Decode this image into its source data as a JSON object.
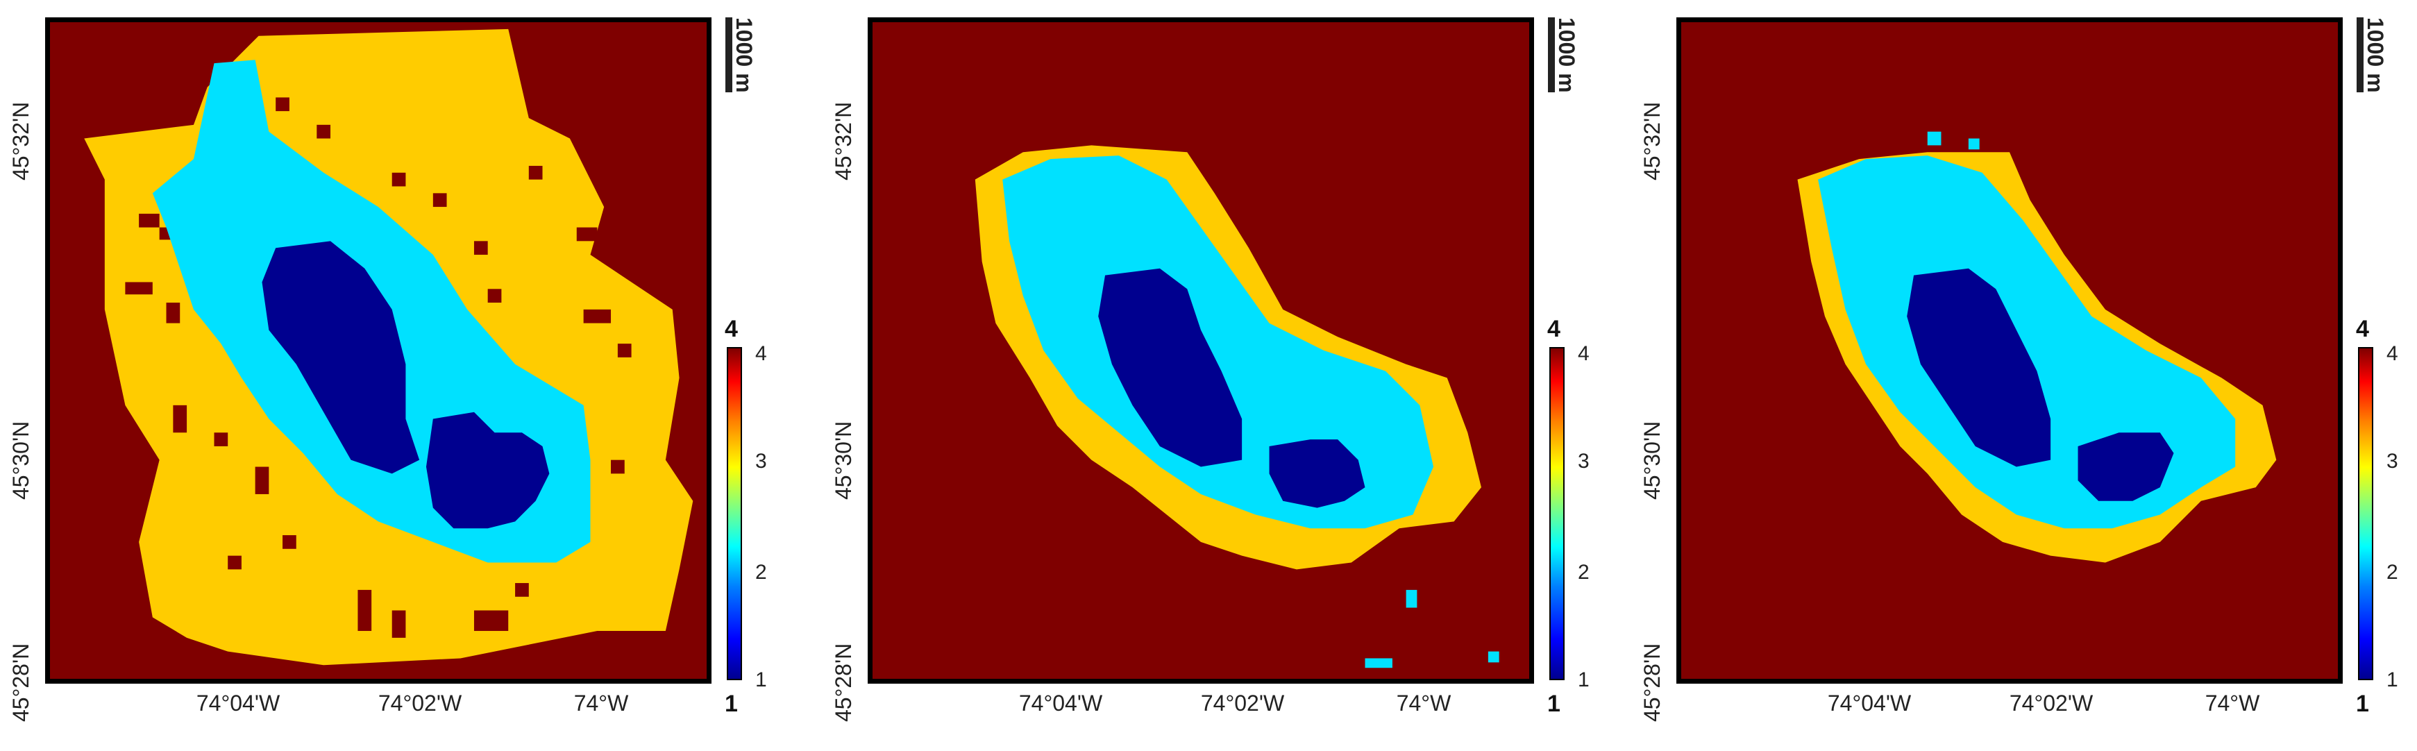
{
  "colors": {
    "class1": "#00008f",
    "class2": "#00e1ff",
    "class3": "#ffcc00",
    "class4": "#7f0000"
  },
  "lat_labels": [
    "45°32'N",
    "45°30'N",
    "45°28'N"
  ],
  "lon_labels": [
    "74°04'W",
    "74°02'W",
    "74°W"
  ],
  "scale_label": "1000 m",
  "colorbar": {
    "ticks": [
      "4",
      "3",
      "2",
      "1"
    ],
    "top_label": "4",
    "bottom_label": "1",
    "range": [
      1,
      4
    ]
  },
  "panels": [
    {
      "name": "panel-1"
    },
    {
      "name": "panel-2"
    },
    {
      "name": "panel-3"
    }
  ]
}
